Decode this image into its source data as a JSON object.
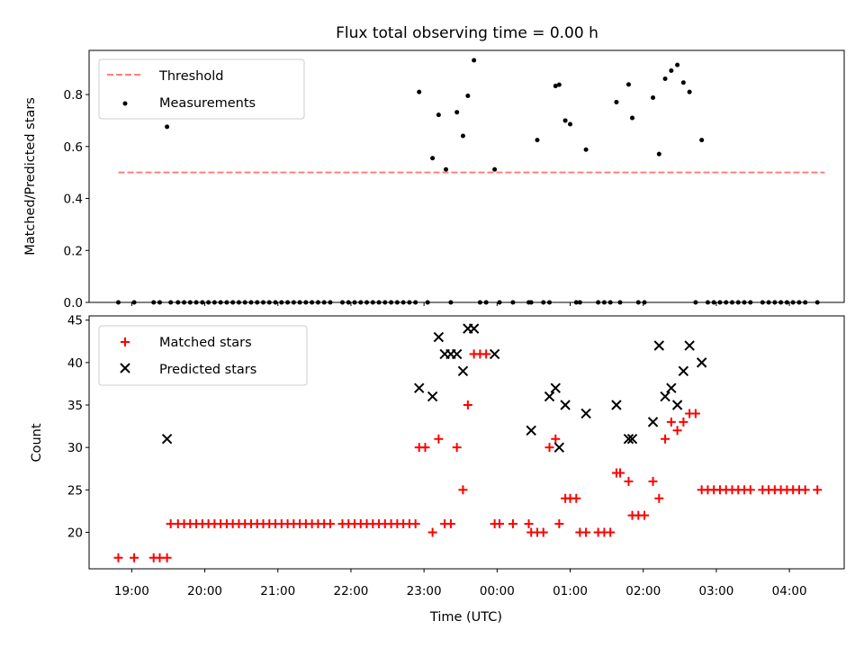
{
  "chart_data": [
    {
      "type": "scatter",
      "title": "Flux total observing time = 0.00 h",
      "xlabel": "",
      "ylabel": "Matched/Predicted stars",
      "ylim": [
        0,
        0.97
      ],
      "yticks": [
        "0.0",
        "0.2",
        "0.4",
        "0.6",
        "0.8"
      ],
      "ytick_values": [
        0,
        0.2,
        0.4,
        0.6,
        0.8
      ],
      "xlim": [
        "18:25",
        "04:45"
      ],
      "legend_position": "top-left",
      "threshold": {
        "name": "Threshold",
        "color": "#ff7f7f",
        "style": "dashed",
        "value": 0.5,
        "x_start": "18:49",
        "x_end": "04:29"
      },
      "series": [
        {
          "name": "Measurements",
          "marker": "dot",
          "color": "#000000",
          "points": [
            [
              "18:49",
              0
            ],
            [
              "19:02",
              0
            ],
            [
              "19:18",
              0
            ],
            [
              "19:23",
              0
            ],
            [
              "19:29",
              0.676
            ],
            [
              "19:32",
              0
            ],
            [
              "19:38",
              0
            ],
            [
              "19:43",
              0
            ],
            [
              "19:48",
              0
            ],
            [
              "19:53",
              0
            ],
            [
              "19:58",
              0
            ],
            [
              "20:03",
              0
            ],
            [
              "20:08",
              0
            ],
            [
              "20:13",
              0
            ],
            [
              "20:18",
              0
            ],
            [
              "20:23",
              0
            ],
            [
              "20:28",
              0
            ],
            [
              "20:33",
              0
            ],
            [
              "20:38",
              0
            ],
            [
              "20:43",
              0
            ],
            [
              "20:48",
              0
            ],
            [
              "20:53",
              0
            ],
            [
              "20:58",
              0
            ],
            [
              "21:03",
              0
            ],
            [
              "21:08",
              0
            ],
            [
              "21:13",
              0
            ],
            [
              "21:18",
              0
            ],
            [
              "21:23",
              0
            ],
            [
              "21:28",
              0
            ],
            [
              "21:33",
              0
            ],
            [
              "21:38",
              0
            ],
            [
              "21:43",
              0
            ],
            [
              "21:53",
              0
            ],
            [
              "21:58",
              0
            ],
            [
              "22:03",
              0
            ],
            [
              "22:08",
              0
            ],
            [
              "22:13",
              0
            ],
            [
              "22:18",
              0
            ],
            [
              "22:23",
              0
            ],
            [
              "22:28",
              0
            ],
            [
              "22:33",
              0
            ],
            [
              "22:38",
              0
            ],
            [
              "22:43",
              0
            ],
            [
              "22:48",
              0
            ],
            [
              "22:53",
              0
            ],
            [
              "22:56",
              0.81
            ],
            [
              "23:03",
              0
            ],
            [
              "23:07",
              0.555
            ],
            [
              "23:12",
              0.722
            ],
            [
              "23:18",
              0.512
            ],
            [
              "23:22",
              0
            ],
            [
              "23:27",
              0.732
            ],
            [
              "23:32",
              0.641
            ],
            [
              "23:36",
              0.795
            ],
            [
              "23:41",
              0.932
            ],
            [
              "23:46",
              0
            ],
            [
              "23:51",
              0
            ],
            [
              "23:58",
              0.512
            ],
            [
              "00:02",
              0
            ],
            [
              "00:13",
              0
            ],
            [
              "00:26",
              0
            ],
            [
              "00:28",
              0
            ],
            [
              "00:33",
              0.625
            ],
            [
              "00:38",
              0
            ],
            [
              "00:43",
              0
            ],
            [
              "00:48",
              0.833
            ],
            [
              "00:51",
              0.838
            ],
            [
              "00:56",
              0.7
            ],
            [
              "01:00",
              0.686
            ],
            [
              "01:05",
              0
            ],
            [
              "01:08",
              0
            ],
            [
              "01:13",
              0.588
            ],
            [
              "01:23",
              0
            ],
            [
              "01:28",
              0
            ],
            [
              "01:33",
              0
            ],
            [
              "01:38",
              0.771
            ],
            [
              "01:41",
              0
            ],
            [
              "01:48",
              0.839
            ],
            [
              "01:51",
              0.71
            ],
            [
              "01:56",
              0
            ],
            [
              "02:01",
              0
            ],
            [
              "02:08",
              0.788
            ],
            [
              "02:13",
              0.571
            ],
            [
              "02:18",
              0.861
            ],
            [
              "02:23",
              0.892
            ],
            [
              "02:28",
              0.914
            ],
            [
              "02:33",
              0.846
            ],
            [
              "02:38",
              0.81
            ],
            [
              "02:43",
              0
            ],
            [
              "02:48",
              0.625
            ],
            [
              "02:53",
              0
            ],
            [
              "02:58",
              0
            ],
            [
              "03:03",
              0
            ],
            [
              "03:08",
              0
            ],
            [
              "03:13",
              0
            ],
            [
              "03:18",
              0
            ],
            [
              "03:23",
              0
            ],
            [
              "03:28",
              0
            ],
            [
              "03:38",
              0
            ],
            [
              "03:43",
              0
            ],
            [
              "03:48",
              0
            ],
            [
              "03:53",
              0
            ],
            [
              "03:58",
              0
            ],
            [
              "04:03",
              0
            ],
            [
              "04:08",
              0
            ],
            [
              "04:13",
              0
            ],
            [
              "04:23",
              0
            ]
          ]
        }
      ]
    },
    {
      "type": "scatter",
      "title": "",
      "xlabel": "Time (UTC)",
      "ylabel": "Count",
      "ylim": [
        15.7,
        45.5
      ],
      "yticks": [
        "20",
        "25",
        "30",
        "35",
        "40",
        "45"
      ],
      "ytick_values": [
        20,
        25,
        30,
        35,
        40,
        45
      ],
      "xlim": [
        "18:25",
        "04:45"
      ],
      "xticks": [
        "19:00",
        "20:00",
        "21:00",
        "22:00",
        "23:00",
        "00:00",
        "01:00",
        "02:00",
        "03:00",
        "04:00"
      ],
      "legend_position": "top-left",
      "series": [
        {
          "name": "Matched stars",
          "marker": "plus",
          "color": "#ff0000",
          "points": [
            [
              "18:49",
              17
            ],
            [
              "19:02",
              17
            ],
            [
              "19:18",
              17
            ],
            [
              "19:23",
              17
            ],
            [
              "19:29",
              17
            ],
            [
              "19:32",
              21
            ],
            [
              "19:38",
              21
            ],
            [
              "19:43",
              21
            ],
            [
              "19:48",
              21
            ],
            [
              "19:53",
              21
            ],
            [
              "19:58",
              21
            ],
            [
              "20:03",
              21
            ],
            [
              "20:08",
              21
            ],
            [
              "20:13",
              21
            ],
            [
              "20:18",
              21
            ],
            [
              "20:23",
              21
            ],
            [
              "20:28",
              21
            ],
            [
              "20:33",
              21
            ],
            [
              "20:38",
              21
            ],
            [
              "20:43",
              21
            ],
            [
              "20:48",
              21
            ],
            [
              "20:53",
              21
            ],
            [
              "20:58",
              21
            ],
            [
              "21:03",
              21
            ],
            [
              "21:08",
              21
            ],
            [
              "21:13",
              21
            ],
            [
              "21:18",
              21
            ],
            [
              "21:23",
              21
            ],
            [
              "21:28",
              21
            ],
            [
              "21:33",
              21
            ],
            [
              "21:38",
              21
            ],
            [
              "21:43",
              21
            ],
            [
              "21:53",
              21
            ],
            [
              "21:58",
              21
            ],
            [
              "22:03",
              21
            ],
            [
              "22:08",
              21
            ],
            [
              "22:13",
              21
            ],
            [
              "22:18",
              21
            ],
            [
              "22:23",
              21
            ],
            [
              "22:28",
              21
            ],
            [
              "22:33",
              21
            ],
            [
              "22:38",
              21
            ],
            [
              "22:43",
              21
            ],
            [
              "22:48",
              21
            ],
            [
              "22:53",
              21
            ],
            [
              "22:56",
              30
            ],
            [
              "23:01",
              30
            ],
            [
              "23:07",
              20
            ],
            [
              "23:12",
              31
            ],
            [
              "23:17",
              21
            ],
            [
              "23:22",
              21
            ],
            [
              "23:27",
              30
            ],
            [
              "23:32",
              25
            ],
            [
              "23:36",
              35
            ],
            [
              "23:41",
              41
            ],
            [
              "23:46",
              41
            ],
            [
              "23:51",
              41
            ],
            [
              "23:58",
              21
            ],
            [
              "00:02",
              21
            ],
            [
              "00:13",
              21
            ],
            [
              "00:26",
              21
            ],
            [
              "00:28",
              20
            ],
            [
              "00:33",
              20
            ],
            [
              "00:38",
              20
            ],
            [
              "00:43",
              30
            ],
            [
              "00:48",
              31
            ],
            [
              "00:51",
              21
            ],
            [
              "00:56",
              24
            ],
            [
              "01:00",
              24
            ],
            [
              "01:05",
              24
            ],
            [
              "01:08",
              20
            ],
            [
              "01:13",
              20
            ],
            [
              "01:23",
              20
            ],
            [
              "01:28",
              20
            ],
            [
              "01:33",
              20
            ],
            [
              "01:38",
              27
            ],
            [
              "01:41",
              27
            ],
            [
              "01:48",
              26
            ],
            [
              "01:51",
              22
            ],
            [
              "01:56",
              22
            ],
            [
              "02:01",
              22
            ],
            [
              "02:08",
              26
            ],
            [
              "02:13",
              24
            ],
            [
              "02:18",
              31
            ],
            [
              "02:23",
              33
            ],
            [
              "02:28",
              32
            ],
            [
              "02:33",
              33
            ],
            [
              "02:38",
              34
            ],
            [
              "02:43",
              34
            ],
            [
              "02:48",
              25
            ],
            [
              "02:53",
              25
            ],
            [
              "02:58",
              25
            ],
            [
              "03:03",
              25
            ],
            [
              "03:08",
              25
            ],
            [
              "03:13",
              25
            ],
            [
              "03:18",
              25
            ],
            [
              "03:23",
              25
            ],
            [
              "03:28",
              25
            ],
            [
              "03:38",
              25
            ],
            [
              "03:43",
              25
            ],
            [
              "03:48",
              25
            ],
            [
              "03:53",
              25
            ],
            [
              "03:58",
              25
            ],
            [
              "04:03",
              25
            ],
            [
              "04:08",
              25
            ],
            [
              "04:13",
              25
            ],
            [
              "04:23",
              25
            ]
          ]
        },
        {
          "name": "Predicted stars",
          "marker": "x",
          "color": "#000000",
          "points": [
            [
              "19:29",
              31
            ],
            [
              "22:56",
              37
            ],
            [
              "23:07",
              36
            ],
            [
              "23:12",
              43
            ],
            [
              "23:17",
              41
            ],
            [
              "23:22",
              41
            ],
            [
              "23:27",
              41
            ],
            [
              "23:32",
              39
            ],
            [
              "23:36",
              44
            ],
            [
              "23:41",
              44
            ],
            [
              "23:58",
              41
            ],
            [
              "00:28",
              32
            ],
            [
              "00:43",
              36
            ],
            [
              "00:48",
              37
            ],
            [
              "00:51",
              30
            ],
            [
              "00:56",
              35
            ],
            [
              "01:13",
              34
            ],
            [
              "01:38",
              35
            ],
            [
              "01:48",
              31
            ],
            [
              "01:51",
              31
            ],
            [
              "02:08",
              33
            ],
            [
              "02:13",
              42
            ],
            [
              "02:18",
              36
            ],
            [
              "02:23",
              37
            ],
            [
              "02:28",
              35
            ],
            [
              "02:33",
              39
            ],
            [
              "02:38",
              42
            ],
            [
              "02:48",
              40
            ]
          ]
        }
      ]
    }
  ]
}
